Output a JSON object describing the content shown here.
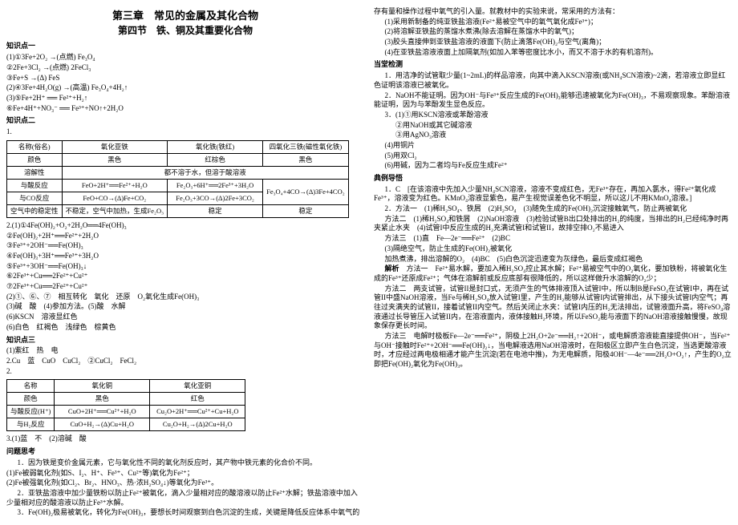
{
  "header": {
    "chapter": "第三章　常见的金属及其化合物",
    "section": "第四节　铁、铜及其重要化合物"
  },
  "left": {
    "kp1": "知识点一",
    "eq1": "(1)①3Fe+2O₂ →(点燃) Fe₃O₄",
    "eq2": "②2Fe+3Cl₂ →(点燃) 2FeCl₃",
    "eq3": "③Fe+S →(Δ) FeS",
    "eq4": "(2)④3Fe+4H₂O(g) →(高温) Fe₃O₄+4H₂↑",
    "eq5": "(3)⑤Fe+2H⁺ ══ Fe²⁺+H₂↑",
    "eq6": "⑥Fe+4H⁺+NO₃⁻ ══ Fe³⁺+NO↑+2H₂O",
    "kp2": "知识点二",
    "kp2_1": "1.",
    "t1": {
      "h1": "名称(俗名)",
      "h2": "氧化亚铁",
      "h3": "氧化铁(铁红)",
      "h4": "四氧化三铁(磁性氧化铁)",
      "r1c1": "颜色",
      "r1c2": "黑色",
      "r1c3": "红棕色",
      "r1c4": "黑色",
      "r2c1": "溶解性",
      "r2c2": "都不溶于水，但溶于酸溶液",
      "r3c1": "与酸反应",
      "r3c2": "FeO+2H⁺══Fe²⁺+H₂O",
      "r3c3": "Fe₂O₃+6H⁺══2Fe³⁺+3H₂O",
      "r3c4": "",
      "r4c1": "与CO反应",
      "r4c2": "FeO+CO→(Δ)Fe+CO₂",
      "r4c3": "Fe₂O₃+3CO→(Δ)2Fe+3CO₂",
      "r4c4": "Fe₃O₄+4CO→(Δ)3Fe+4CO₂",
      "r5c1": "空气中的稳定性",
      "r5c2": "不稳定，空气中加热，生成Fe₂O₃",
      "r5c3": "稳定",
      "r5c4": "稳定"
    },
    "eq2_1": "2.(1)①4Fe(OH)₂+O₂+2H₂O══4Fe(OH)₃",
    "eq2_2": "②Fe(OH)₂+2H⁺══Fe²⁺+2H₂O",
    "eq2_3": "③Fe³⁺+2OH⁻══Fe(OH)₃",
    "eq2_4": "④Fe(OH)₃+3H⁺══Fe³⁺+3H₂O",
    "eq2_5": "⑤Fe³⁺+3OH⁻══Fe(OH)₃↓",
    "eq2_6": "⑥2Fe³⁺+Cu══2Fe²⁺+Cu²⁺",
    "eq2_7": "⑦2Fe³⁺+Cu══2Fe²⁺+Cu²⁺",
    "eq2_8": "(2)①、⑥、⑦　相互转化　氧化　还原　O₂氧化生成Fe(OH)₃",
    "eq2_9": "(3)碱　酸　(4)参加方法。(5)酸　水解",
    "eq2_10": "(6)KSCN　溶液显红色",
    "eq2_11": "(6)白色　红褐色　浅绿色　棕黄色",
    "kp3": "知识点三",
    "kp3_1": "(1)紫红　热　电",
    "kp3_2": "2.Cu　蓝　CuO　CuCl₂　②CuCl₂　FeCl₂",
    "kp3_3": "2.",
    "t2": {
      "h1": "名称",
      "h2": "氧化铜",
      "h3": "氧化亚铜",
      "r1c1": "颜色",
      "r1c2": "黑色",
      "r1c3": "红色",
      "r2c1": "与酸反应(H⁺)",
      "r2c2": "CuO+2H⁺══Cu²⁺+H₂O",
      "r2c3": "Cu₂O+2H⁺══Cu²⁺+Cu+H₂O",
      "r3c1": "与H₂反应",
      "r3c2": "CuO+H₂→(Δ)Cu+H₂O",
      "r3c3": "Cu₂O+H₂→(Δ)2Cu+H₂O"
    },
    "kp3_4": "3.(1)蓝　不　(2)溶碱　酸",
    "issue_head": "问题思考",
    "issue1": "1．因为铁是变价金属元素，它与氧化性不同的氧化剂反应时，其产物中铁元素的化合价不同。",
    "issue1a": "(1)Fe被弱氧化剂(如S、I₂、H⁺、Fe³⁺、Cu²⁺等)氧化为Fe²⁺；",
    "issue1b": "(2)Fe被强氧化剂(如Cl₂、Br₂、HNO₃、热·浓H₂SO₄↓)等氧化为Fe³⁺。",
    "issue2": "2．亚铁盐溶液中加少量铁粉以防止Fe²⁺被氧化，滴入少量相对应的酸溶液以防止Fe²⁺水解；铁盐溶液中加入少量相对应的酸溶液以防止Fe³⁺水解。",
    "issue3": "3．Fe(OH)₂极易被氧化，转化为Fe(OH)₃，要想长时间观察到白色沉淀的生成，关键是降低反应体系中氧气的"
  },
  "right": {
    "intro": "存有量和操作过程中氧气的引入量。就教材中的实验来说，常采用的方法有：",
    "m1": "(1)采用新制备的纯亚铁盐溶液(Fe²⁺易被空气中的氧气氧化成Fe³⁺)；",
    "m2": "(2)将溶解亚铁盐的蒸馏水煮沸(除去溶解在蒸馏水中的氧气)；",
    "m3": "(3)胶头直接伸到亚铁盐溶液的液面下(防止滴落Fe(OH)₂与空气(离角)；",
    "m4": "(4)在亚铁盐溶液液面上加隔氧剂(如加入苯等密度比水小，而又不溶于水的有机溶剂)。",
    "detect_head": "当堂检测",
    "d1": "1．用洁净的试管取少量(1~2mL)的样品溶液，向其中滴入KSCN溶液(或NH₄SCN溶液)~2滴，若溶液立即显红色证明该溶液已被氧化。",
    "d2": "2．NaOH不能证明。因为OH⁻与Fe³⁺反应生成的Fe(OH)₃能够迅速被氧化为Fe(OH)₃，不易观察现象。苯酚溶液能证明，因为与苯酚发生显色反应。",
    "d3": "3．(1)①用KSCN溶液或苯酚溶液",
    "d3a": "②用NaOH或其它碱溶液",
    "d3b": "③用AgNO₃溶液",
    "d3c": "(4)用铜片",
    "d3d": "(5)用双Cl₂",
    "d3e": "(6)用碱，因为二者均与Fe反应生成Fe²⁺",
    "ex_head": "典例导悟",
    "ex1": "1．C　[在该溶液中先加入少量NH₄SCN溶液，溶液不变成红色，无Fe³⁺存在，再加入氯水，得Fe²⁺氧化成Fe³⁺，溶液变为红色。KMnO₄溶液显紫色，易产生视觉误差色化不明显，所以这儿不用KMnO₄溶液。]",
    "ex2": "2．方法一　(1)稀H₂SO₄、铁屑　(2)H₂SO₄　(3)随免生成的Fe(OH)₂沉淀接触氧气，防止两被氧化",
    "ex2a": "方法二　(1)稀H₂SO₄和铁屑　(2)NaOH溶液　(3)检验试管B出口处排出的H₂的纯度，当排出的H₂已经纯净时再夹紧止水夹　(4)试管I中反应生成的H₂充满试管I和试管II，故排空排O₂不易进入",
    "ex2b": "方法三　(1)直　Fe—2e⁻══Fe²⁺　(2)BC",
    "ex2c": "(3)隔绝空气，防止生成的Fe(OH)₂被氧化",
    "ex2d": "加热煮沸，排出溶解的O₂　(4)BC　(5)白色沉淀迅速变为灰绿色，最后变成红褐色",
    "ana_head": "解析",
    "ana1": "方法一　Fe²⁺易水解，要加入稀H₂SO₄控止其水解；Fe²⁺易被空气中的O₂氧化，要加铁粉，将被氧化生成的Fe³⁺还原成Fe²⁺；气体在溶解前或反应底部有很降低的，所以这样做升水溶解的O₂少；",
    "ana2": "方法二　两支试管，试管II是封口式，无须产生的气体排液顶入试管I中，所以制B是FeSO₄在试管I中，再在试管II中盛NaOH溶液，当Fe与稀H₂SO₄放入试管I里，产生的H₂能够从试管I内试管排出，从下接头试管I内空气；再往过夹满夹的试管II，接着试管II内空气。然后关闭止水夹：试管I内压的H₂无法排出，试管液面升高，将FeSO₄溶液通过长导管压入试管II内，在溶液面内，液体接触H₂环境，所以FeSO₂能与液面下的NaOH溶液接触慢慢，故现象保存更长时间。",
    "ana3": "方法三　电解时极板Fe—2e⁻══Fe²⁺，阴极上2H₂O+2e⁻══H₂↑+2OH⁻，或电解质溶液能直接提供OH⁻，当Fe²⁺与OH⁻接触时Fe²⁺+2OH⁻══Fe(OH)₂↓，当电解液选用NaOH溶液时，在阳极区立即产生白色沉淀，当选更酸溶液时，才应经过两电极相通才能产生沉淀(若在电池中推)，为无电解质，阳极4OH⁻—4e⁻══2H₂O+O₂↑，产生的O₂立即把Fe(OH)₂氧化为Fe(OH)₃。"
  }
}
